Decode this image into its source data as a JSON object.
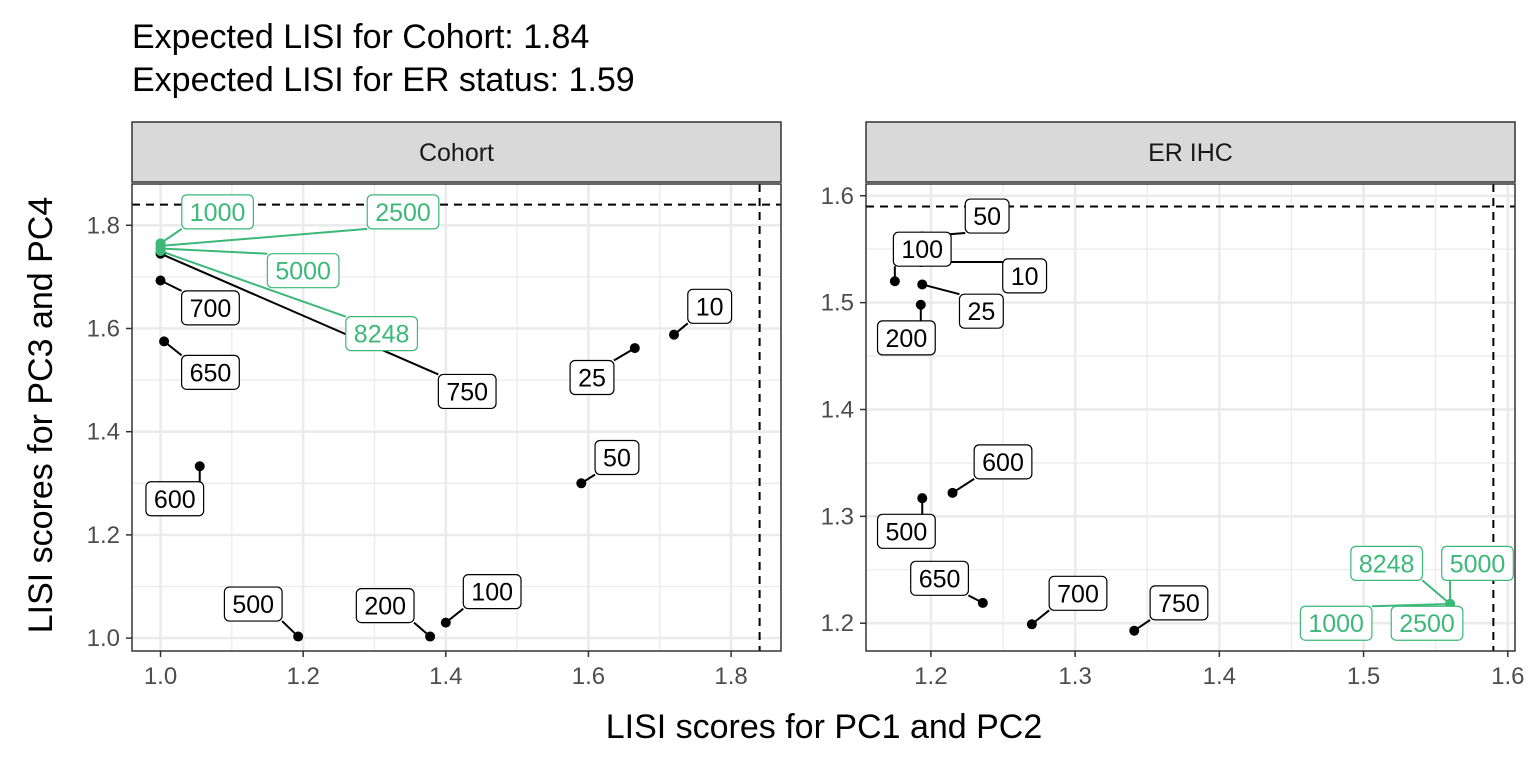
{
  "colors": {
    "default": "#000000",
    "highlight": "#3cb878"
  },
  "title_lines": [
    "Expected LISI for Cohort: 1.84",
    "Expected LISI for ER status: 1.59"
  ],
  "chart_data": {
    "type": "scatter",
    "xlabel": "LISI scores for PC1 and PC2",
    "ylabel": "LISI scores for PC3 and PC4",
    "panels": [
      {
        "strip": "Cohort",
        "xlim": [
          0.96,
          1.87
        ],
        "ylim": [
          0.975,
          1.88
        ],
        "xticks": [
          1.0,
          1.2,
          1.4,
          1.6,
          1.8
        ],
        "xtick_labels": [
          "1.0",
          "1.2",
          "1.4",
          "1.6",
          "1.8"
        ],
        "yticks": [
          1.0,
          1.2,
          1.4,
          1.6,
          1.8
        ],
        "ytick_labels": [
          "1.0",
          "1.2",
          "1.4",
          "1.6",
          "1.8"
        ],
        "expected_x": 1.84,
        "expected_y": 1.84,
        "points": [
          {
            "label": "10",
            "x": 1.72,
            "y": 1.588,
            "lx": 1.77,
            "ly": 1.643,
            "highlight": false
          },
          {
            "label": "25",
            "x": 1.665,
            "y": 1.562,
            "lx": 1.605,
            "ly": 1.505,
            "highlight": false
          },
          {
            "label": "50",
            "x": 1.59,
            "y": 1.3,
            "lx": 1.64,
            "ly": 1.35,
            "highlight": false
          },
          {
            "label": "100",
            "x": 1.4,
            "y": 1.03,
            "lx": 1.465,
            "ly": 1.09,
            "highlight": false
          },
          {
            "label": "200",
            "x": 1.378,
            "y": 1.003,
            "lx": 1.315,
            "ly": 1.063,
            "highlight": false
          },
          {
            "label": "500",
            "x": 1.193,
            "y": 1.003,
            "lx": 1.13,
            "ly": 1.066,
            "highlight": false
          },
          {
            "label": "600",
            "x": 1.055,
            "y": 1.333,
            "lx": 1.02,
            "ly": 1.27,
            "highlight": false
          },
          {
            "label": "650",
            "x": 1.005,
            "y": 1.575,
            "lx": 1.07,
            "ly": 1.515,
            "highlight": false
          },
          {
            "label": "700",
            "x": 1.0,
            "y": 1.693,
            "lx": 1.07,
            "ly": 1.64,
            "highlight": false
          },
          {
            "label": "750",
            "x": 1.0,
            "y": 1.745,
            "lx": 1.43,
            "ly": 1.478,
            "highlight": false
          },
          {
            "label": "1000",
            "x": 1.0,
            "y": 1.765,
            "lx": 1.08,
            "ly": 1.826,
            "highlight": true
          },
          {
            "label": "2500",
            "x": 1.0,
            "y": 1.76,
            "lx": 1.34,
            "ly": 1.826,
            "highlight": true
          },
          {
            "label": "5000",
            "x": 1.0,
            "y": 1.755,
            "lx": 1.2,
            "ly": 1.712,
            "highlight": true
          },
          {
            "label": "8248",
            "x": 1.0,
            "y": 1.75,
            "lx": 1.31,
            "ly": 1.59,
            "highlight": true
          }
        ]
      },
      {
        "strip": "ER IHC",
        "xlim": [
          1.155,
          1.605
        ],
        "ylim": [
          1.174,
          1.611
        ],
        "xticks": [
          1.2,
          1.3,
          1.4,
          1.5,
          1.6
        ],
        "xtick_labels": [
          "1.2",
          "1.3",
          "1.4",
          "1.5",
          "1.6"
        ],
        "yticks": [
          1.2,
          1.3,
          1.4,
          1.5,
          1.6
        ],
        "ytick_labels": [
          "1.2",
          "1.3",
          "1.4",
          "1.5",
          "1.6"
        ],
        "expected_x": 1.59,
        "expected_y": 1.59,
        "points": [
          {
            "label": "10",
            "x": 1.193,
            "y": 1.538,
            "lx": 1.265,
            "ly": 1.525,
            "highlight": false
          },
          {
            "label": "25",
            "x": 1.194,
            "y": 1.517,
            "lx": 1.235,
            "ly": 1.492,
            "highlight": false
          },
          {
            "label": "50",
            "x": 1.194,
            "y": 1.562,
            "lx": 1.239,
            "ly": 1.581,
            "highlight": false
          },
          {
            "label": "100",
            "x": 1.175,
            "y": 1.52,
            "lx": 1.194,
            "ly": 1.55,
            "highlight": false
          },
          {
            "label": "200",
            "x": 1.193,
            "y": 1.498,
            "lx": 1.183,
            "ly": 1.467,
            "highlight": false
          },
          {
            "label": "500",
            "x": 1.194,
            "y": 1.317,
            "lx": 1.183,
            "ly": 1.286,
            "highlight": false
          },
          {
            "label": "600",
            "x": 1.215,
            "y": 1.322,
            "lx": 1.25,
            "ly": 1.351,
            "highlight": false
          },
          {
            "label": "650",
            "x": 1.236,
            "y": 1.219,
            "lx": 1.206,
            "ly": 1.242,
            "highlight": false
          },
          {
            "label": "700",
            "x": 1.27,
            "y": 1.199,
            "lx": 1.302,
            "ly": 1.228,
            "highlight": false
          },
          {
            "label": "750",
            "x": 1.341,
            "y": 1.193,
            "lx": 1.372,
            "ly": 1.219,
            "highlight": false
          },
          {
            "label": "1000",
            "x": 1.56,
            "y": 1.218,
            "lx": 1.481,
            "ly": 1.2,
            "highlight": true
          },
          {
            "label": "2500",
            "x": 1.56,
            "y": 1.218,
            "lx": 1.544,
            "ly": 1.2,
            "highlight": true
          },
          {
            "label": "5000",
            "x": 1.56,
            "y": 1.218,
            "lx": 1.579,
            "ly": 1.256,
            "highlight": true
          },
          {
            "label": "8248",
            "x": 1.56,
            "y": 1.218,
            "lx": 1.516,
            "ly": 1.256,
            "highlight": true
          }
        ]
      }
    ]
  }
}
